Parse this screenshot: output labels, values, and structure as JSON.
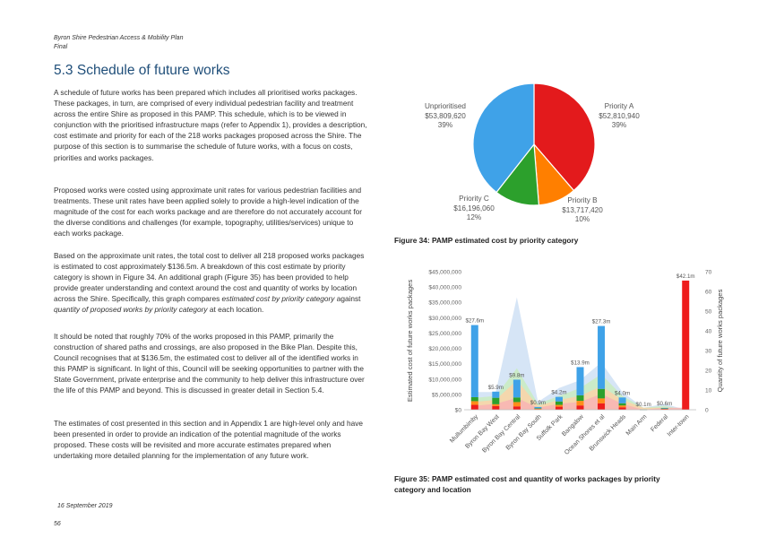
{
  "header": {
    "doc_title": "Byron Shire Pedestrian Access & Mobility Plan",
    "status": "Final"
  },
  "section": {
    "title": "5.3 Schedule of future works",
    "paragraphs": [
      "A schedule of future works has been prepared which includes all prioritised works packages. These packages, in turn, are comprised of every individual pedestrian facility and treatment across the entire Shire as proposed in this PAMP. This schedule, which is to be viewed in conjunction with the prioritised infrastructure maps (refer to Appendix 1), provides a description, cost estimate and priority for each of the 218 works packages proposed across the Shire. The purpose of this section is to summarise the schedule of future works, with a focus on costs, priorities and works packages.",
      "Proposed works were costed using approximate unit rates for various pedestrian facilities and treatments. These unit rates have been applied solely to provide a high-level indication of the magnitude of the cost for each works package and are therefore do not accurately account for the diverse conditions and challenges (for example, topography, utilities/services) unique to each works package.",
      "It should be noted that roughly 70% of the works proposed in this PAMP, primarily the construction of shared paths and crossings, are also proposed in the Bike Plan. Despite this, Council recognises that at $136.5m, the estimated cost to deliver all of the identified works in this PAMP is significant. In light of this, Council will be seeking opportunities to partner with the State Government, private enterprise and the community to help deliver this infrastructure over the life of this PAMP and beyond. This is discussed in greater detail in Section 5.4.",
      "The estimates of cost presented in this section and in Appendix 1 are high-level only and have been presented in order to provide an indication of the potential magnitude of the works proposed. These costs will be revisited and more accurate estimates prepared when undertaking more detailed planning for the implementation of any future work."
    ],
    "para3": {
      "pre": "Based on the approximate unit rates, the total cost to deliver all 218 proposed works packages is estimated to cost approximately $136.5m. A breakdown of this cost estimate by priority category is shown in Figure 34. An additional graph (Figure 35) has been provided to help provide greater understanding and context around the cost and quantity of works by location across the Shire. Specifically, this graph compares ",
      "em1": "estimated cost by priority category",
      "mid": " against ",
      "em2": "quantity of proposed works by priority category",
      "post": " at each location."
    }
  },
  "footer": {
    "date": "16 September 2019",
    "page": "56"
  },
  "figure34": {
    "caption": "Figure 34: PAMP estimated cost by priority category",
    "chart_data": {
      "type": "pie",
      "slices": [
        {
          "name": "Priority A",
          "value_text": "$52,810,940",
          "value": 52810940,
          "percent": "39%",
          "color": "#e31a1c"
        },
        {
          "name": "Priority B",
          "value_text": "$13,717,420",
          "value": 13717420,
          "percent": "10%",
          "color": "#ff7f00"
        },
        {
          "name": "Priority C",
          "value_text": "$16,196,060",
          "value": 16196060,
          "percent": "12%",
          "color": "#2ca02c"
        },
        {
          "name": "Unprioritised",
          "value_text": "$53,809,620",
          "value": 53809620,
          "percent": "39%",
          "color": "#3fa2e8"
        }
      ]
    }
  },
  "figure35": {
    "caption_line1": "Figure 35: PAMP estimated cost and quantity of works packages by priority",
    "caption_line2": "category and location",
    "chart_data": {
      "type": "bar",
      "categories": [
        "Mullumbimby",
        "Byron Bay West",
        "Byron Bay Central",
        "Byron Bay South",
        "Suffolk Park",
        "Bangalow",
        "Ocean Shores et al",
        "Brunswick Heads",
        "Main Arm",
        "Federal",
        "Inter-town"
      ],
      "ylabel": "Estimated cost of future works packages",
      "y2label": "Quantity of future works packages",
      "ylim": [
        0,
        45000000
      ],
      "y2lim": [
        0,
        70
      ],
      "yticks": [
        "$0",
        "$5,000,000",
        "$10,000,000",
        "$15,000,000",
        "$20,000,000",
        "$25,000,000",
        "$30,000,000",
        "$35,000,000",
        "$40,000,000",
        "$45,000,000"
      ],
      "y2ticks": [
        "0",
        "10",
        "20",
        "30",
        "40",
        "50",
        "60",
        "70"
      ],
      "totals": [
        27.6,
        5.9,
        9.8,
        0.9,
        4.2,
        13.9,
        27.3,
        4.0,
        0.1,
        0.6,
        42.1
      ],
      "total_labels": [
        "$27.6m",
        "$5.9m",
        "$9.8m",
        "$0.9m",
        "$4.2m",
        "$13.9m",
        "$27.3m",
        "$4.0m",
        "$0.1m",
        "$0.6m",
        "$42.1m"
      ],
      "series": [
        {
          "name": "Priority A",
          "color": "#ee1c1c",
          "values": [
            1.6,
            1.2,
            1.1,
            0.2,
            1.0,
            1.4,
            2.1,
            0.8,
            0.05,
            0.3,
            42.1
          ]
        },
        {
          "name": "Priority B",
          "color": "#ff8c1a",
          "values": [
            1.2,
            0.6,
            1.4,
            0.2,
            0.6,
            1.5,
            1.6,
            0.6,
            0.02,
            0.1,
            0
          ]
        },
        {
          "name": "Priority C",
          "color": "#2ca02c",
          "values": [
            1.3,
            2.1,
            1.5,
            0.1,
            1.1,
            1.8,
            3.1,
            0.7,
            0.01,
            0.1,
            0
          ]
        },
        {
          "name": "Unprioritised",
          "color": "#3fa2e8",
          "values": [
            23.5,
            2.0,
            5.8,
            0.4,
            1.5,
            9.2,
            20.5,
            1.9,
            0.02,
            0.1,
            0
          ]
        }
      ],
      "quantity_series": [
        {
          "name": "Priority A",
          "color": "#f8b4b4",
          "values": [
            2,
            3,
            6,
            1,
            3,
            4,
            8,
            3,
            0,
            1,
            1
          ]
        },
        {
          "name": "Priority B",
          "color": "#fcd4a8",
          "values": [
            4,
            5,
            15,
            2,
            5,
            7,
            12,
            5,
            1,
            1,
            0
          ]
        },
        {
          "name": "Priority C",
          "color": "#c9ecc0",
          "values": [
            6,
            7,
            21,
            3,
            7,
            11,
            18,
            7,
            1,
            2,
            0
          ]
        },
        {
          "name": "Unprioritised",
          "color": "#cfe0f4",
          "values": [
            9,
            9,
            57,
            4,
            11,
            15,
            24,
            9,
            1,
            3,
            0
          ]
        }
      ]
    }
  }
}
